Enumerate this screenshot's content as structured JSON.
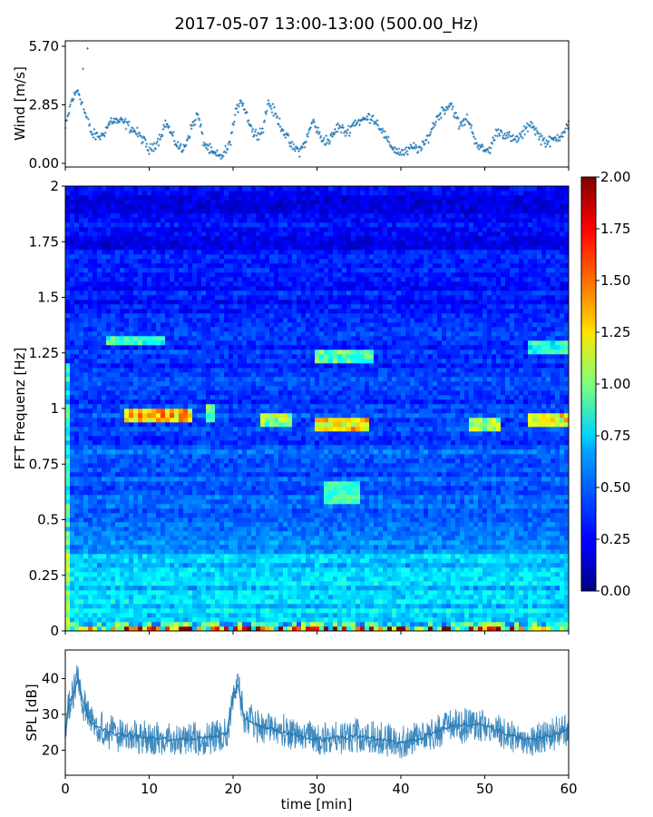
{
  "title": "2017-05-07 13:00-13:00 (500.00_Hz)",
  "chart_data": [
    {
      "type": "scatter",
      "panel": "wind",
      "ylabel": "Wind [m/s]",
      "yticks": [
        "0.00",
        "2.85",
        "5.70"
      ],
      "ylim": [
        0,
        5.7
      ],
      "xlim": [
        0,
        60
      ],
      "color": "#1f77b4",
      "anchors": [
        [
          0,
          1.7
        ],
        [
          0.7,
          3.0
        ],
        [
          1.5,
          3.6
        ],
        [
          2.3,
          2.5
        ],
        [
          3.2,
          1.4
        ],
        [
          4.3,
          1.3
        ],
        [
          5.5,
          2.1
        ],
        [
          7.0,
          2.0
        ],
        [
          8.2,
          1.6
        ],
        [
          9.2,
          1.2
        ],
        [
          10.0,
          0.6
        ],
        [
          11.2,
          1.2
        ],
        [
          12.0,
          2.0
        ],
        [
          13.0,
          1.1
        ],
        [
          14.0,
          0.6
        ],
        [
          15.0,
          1.7
        ],
        [
          15.8,
          2.4
        ],
        [
          16.5,
          1.0
        ],
        [
          17.5,
          0.5
        ],
        [
          18.5,
          0.3
        ],
        [
          19.5,
          0.8
        ],
        [
          20.2,
          2.2
        ],
        [
          20.9,
          3.2
        ],
        [
          21.6,
          2.4
        ],
        [
          22.5,
          1.4
        ],
        [
          23.5,
          1.6
        ],
        [
          24.2,
          3.0
        ],
        [
          25.0,
          2.4
        ],
        [
          26.0,
          1.6
        ],
        [
          27.0,
          0.8
        ],
        [
          28.0,
          0.6
        ],
        [
          28.8,
          1.2
        ],
        [
          29.5,
          2.1
        ],
        [
          30.5,
          1.2
        ],
        [
          31.5,
          1.1
        ],
        [
          32.5,
          1.8
        ],
        [
          33.5,
          1.5
        ],
        [
          34.5,
          2.0
        ],
        [
          35.5,
          2.1
        ],
        [
          36.5,
          2.3
        ],
        [
          37.5,
          1.8
        ],
        [
          38.5,
          1.0
        ],
        [
          39.5,
          0.6
        ],
        [
          40.5,
          0.5
        ],
        [
          41.5,
          0.8
        ],
        [
          42.5,
          0.7
        ],
        [
          43.5,
          1.5
        ],
        [
          44.3,
          2.2
        ],
        [
          45.0,
          2.6
        ],
        [
          46.0,
          2.9
        ],
        [
          47.0,
          1.8
        ],
        [
          48.0,
          2.2
        ],
        [
          48.8,
          1.2
        ],
        [
          49.5,
          0.7
        ],
        [
          50.5,
          0.6
        ],
        [
          51.5,
          1.6
        ],
        [
          52.5,
          1.4
        ],
        [
          53.5,
          1.1
        ],
        [
          54.5,
          1.4
        ],
        [
          55.5,
          2.0
        ],
        [
          56.5,
          1.3
        ],
        [
          57.5,
          1.0
        ],
        [
          58.5,
          1.2
        ],
        [
          59.3,
          1.5
        ],
        [
          60,
          1.9
        ]
      ]
    },
    {
      "type": "heatmap",
      "panel": "spectrogram",
      "ylabel": "FFT Frequenz [Hz]",
      "yticks": [
        "0",
        "0.25",
        "0.5",
        "0.75",
        "1",
        "1.25",
        "1.5",
        "1.75",
        "2"
      ],
      "ylim": [
        0,
        2
      ],
      "xlim": [
        0,
        60
      ],
      "colormap": "jet",
      "colorbar": {
        "vmin": 0,
        "vmax": 2,
        "ticks": [
          "0.00",
          "0.25",
          "0.50",
          "0.75",
          "1.00",
          "1.25",
          "1.50",
          "1.75",
          "2.00"
        ]
      },
      "hotspots": [
        [
          7.0,
          15.0,
          0.97,
          0.03,
          1.05
        ],
        [
          5.0,
          12.0,
          1.3,
          0.02,
          0.55
        ],
        [
          17.0,
          18.0,
          0.98,
          0.04,
          0.55
        ],
        [
          23.0,
          27.0,
          0.95,
          0.03,
          0.75
        ],
        [
          30.0,
          36.0,
          0.93,
          0.03,
          1.0
        ],
        [
          30.0,
          37.0,
          1.23,
          0.03,
          0.6
        ],
        [
          31.0,
          35.0,
          0.62,
          0.05,
          0.45
        ],
        [
          48.0,
          52.0,
          0.93,
          0.03,
          0.75
        ],
        [
          55.0,
          60.0,
          0.95,
          0.03,
          0.9
        ],
        [
          55.0,
          60.0,
          1.27,
          0.03,
          0.55
        ]
      ]
    },
    {
      "type": "line",
      "panel": "spl",
      "ylabel": "SPL [dB]",
      "xlabel": "time [min]",
      "yticks": [
        "20",
        "30",
        "40"
      ],
      "xticks": [
        "0",
        "10",
        "20",
        "30",
        "40",
        "50",
        "60"
      ],
      "ylim": [
        13,
        48
      ],
      "xlim": [
        0,
        60
      ],
      "color": "#1f77b4",
      "anchors": [
        [
          0,
          24
        ],
        [
          0.4,
          33
        ],
        [
          1.0,
          36
        ],
        [
          1.5,
          40
        ],
        [
          2.2,
          33
        ],
        [
          3.0,
          28
        ],
        [
          5.0,
          25
        ],
        [
          8.0,
          24
        ],
        [
          12.0,
          23
        ],
        [
          15.0,
          23
        ],
        [
          18.0,
          24
        ],
        [
          19.3,
          25
        ],
        [
          20.0,
          35
        ],
        [
          20.6,
          38
        ],
        [
          21.3,
          29
        ],
        [
          23.0,
          27
        ],
        [
          26.0,
          25
        ],
        [
          30.0,
          23
        ],
        [
          35.0,
          24
        ],
        [
          38.0,
          23
        ],
        [
          40.0,
          22
        ],
        [
          42.0,
          23
        ],
        [
          44.0,
          25
        ],
        [
          46.0,
          27
        ],
        [
          48.0,
          27
        ],
        [
          50.0,
          27
        ],
        [
          52.0,
          25
        ],
        [
          55.0,
          23
        ],
        [
          58.0,
          24
        ],
        [
          60,
          26
        ]
      ]
    }
  ]
}
